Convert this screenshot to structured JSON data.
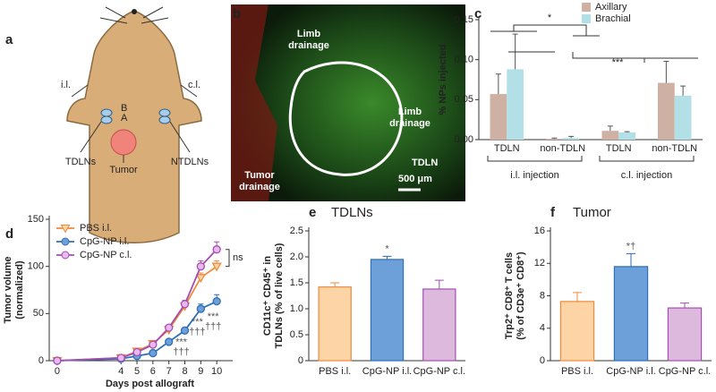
{
  "panel_labels": [
    "a",
    "b",
    "c",
    "d",
    "e",
    "f"
  ],
  "diagram": {
    "labels": [
      "i.l.",
      "c.l.",
      "B",
      "A",
      "TDLNs",
      "Tumor",
      "NTDLNs"
    ]
  },
  "micrograph": {
    "labels": [
      "Limb drainage",
      "Limb drainage",
      "Tumor drainage",
      "TDLN",
      "500 μm"
    ]
  },
  "chart_data": [
    {
      "type": "grouped_bar",
      "ylabel": "% NPs injected",
      "categories": [
        "TDLN",
        "non-TDLN",
        "TDLN",
        "non-TDLN"
      ],
      "group_labels": [
        "i.l. injection",
        "c.l. injection"
      ],
      "series": [
        {
          "name": "Axillary",
          "color": "#cfb1a4",
          "values": [
            0.057,
            0.001,
            0.011,
            0.071
          ],
          "errors": [
            0.025,
            0.001,
            0.006,
            0.027
          ]
        },
        {
          "name": "Brachial",
          "color": "#b3e0e6",
          "values": [
            0.088,
            0.002,
            0.009,
            0.055
          ],
          "errors": [
            0.044,
            0.002,
            0.001,
            0.012
          ]
        }
      ],
      "ylim": [
        0,
        0.15
      ],
      "yticks": [
        {
          "value": 0,
          "label": "0.00"
        },
        {
          "value": 0.05,
          "label": "0.05"
        },
        {
          "value": 0.1,
          "label": "0.10"
        },
        {
          "value": 0.15,
          "label": "0.15"
        }
      ],
      "legend": "top-right",
      "annotations": [
        "*",
        "***"
      ]
    },
    {
      "type": "line",
      "xlabel": "Days post allograft",
      "ylabel": [
        "Tumor volume",
        "(normalized)"
      ],
      "x": [
        0,
        4,
        5,
        6,
        7,
        8,
        9,
        10
      ],
      "series": [
        {
          "name": "PBS i.l.",
          "color": "#f08a3c",
          "marker": "triangle-down",
          "values": [
            0,
            3,
            10,
            18,
            33,
            58,
            88,
            100
          ],
          "errors": [
            1,
            1,
            1,
            2,
            3,
            4,
            5,
            6
          ]
        },
        {
          "name": "CpG-NP i.l.",
          "color": "#2f6fb5",
          "marker": "circle",
          "values": [
            0,
            2,
            5,
            8,
            20,
            32,
            55,
            63
          ],
          "errors": [
            1,
            1,
            1,
            1,
            2,
            3,
            5,
            7
          ]
        },
        {
          "name": "CpG-NP c.l.",
          "color": "#a24fb0",
          "marker": "circle",
          "values": [
            0,
            3,
            9,
            17,
            35,
            60,
            100,
            118
          ],
          "errors": [
            1,
            1,
            1,
            2,
            3,
            4,
            6,
            8
          ]
        }
      ],
      "xlim": [
        -0.5,
        11
      ],
      "xticks": [
        0,
        4,
        5,
        6,
        7,
        8,
        9,
        10
      ],
      "ylim": [
        0,
        150
      ],
      "yticks": [
        0,
        50,
        100,
        150
      ],
      "legend": "top-left",
      "annotations": [
        "***",
        "†††",
        "***",
        "†††",
        "***",
        "†††",
        "ns"
      ]
    },
    {
      "type": "bar",
      "title": "TDLNs",
      "ylabel": [
        "CD11c⁺ CD45⁺ in",
        "TDLNs (% of live cells)"
      ],
      "categories": [
        "PBS i.l.",
        "CpG-NP i.l.",
        "CpG-NP c.l."
      ],
      "values": [
        1.42,
        1.95,
        1.38
      ],
      "errors": [
        0.08,
        0.06,
        0.17
      ],
      "colors": [
        "#fdd4a6",
        "#6d9fd8",
        "#dcb9dd"
      ],
      "edge_colors": [
        "#f08a3c",
        "#2f6fb5",
        "#a24fb0"
      ],
      "ylim": [
        0,
        2.5
      ],
      "yticks": [
        0,
        0.5,
        {
          "value": 1,
          "label": "1.0"
        },
        1.5,
        {
          "value": 2,
          "label": "2.0"
        },
        2.5
      ],
      "annotations": [
        "*"
      ]
    },
    {
      "type": "bar",
      "title": "Tumor",
      "ylabel": [
        "Trp2⁺ CD8⁺ T cells",
        "(% of CD3e⁺ CD8⁺)"
      ],
      "categories": [
        "PBS i.l.",
        "CpG-NP i.l.",
        "CpG-NP c.l."
      ],
      "values": [
        7.3,
        11.6,
        6.5
      ],
      "errors": [
        1.1,
        1.6,
        0.6
      ],
      "colors": [
        "#fdd4a6",
        "#6d9fd8",
        "#dcb9dd"
      ],
      "edge_colors": [
        "#f08a3c",
        "#2f6fb5",
        "#a24fb0"
      ],
      "ylim": [
        0,
        16
      ],
      "yticks": [
        0,
        4,
        8,
        12,
        16
      ],
      "annotations": [
        "*†"
      ]
    }
  ]
}
